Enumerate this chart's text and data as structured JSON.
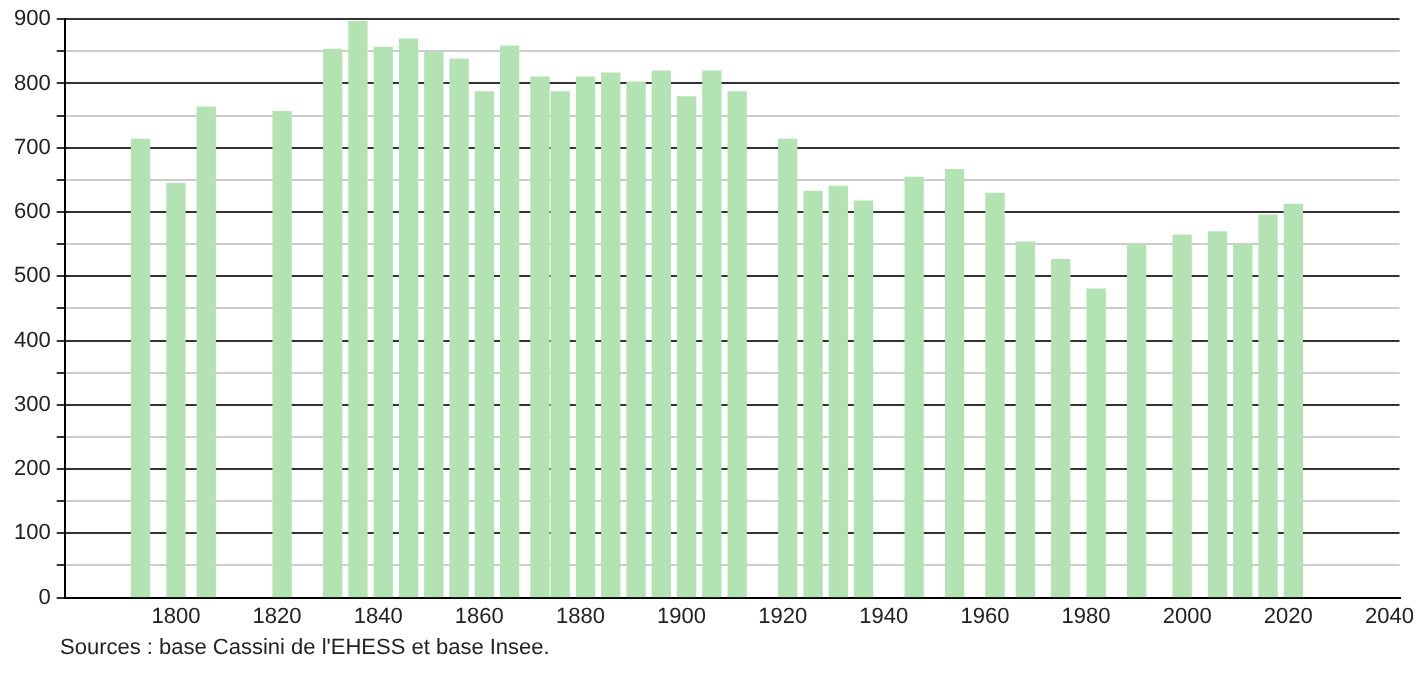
{
  "chart_data": {
    "type": "bar",
    "color": "#b3e3b3",
    "x": [
      1793,
      1800,
      1806,
      1821,
      1831,
      1836,
      1841,
      1846,
      1851,
      1856,
      1861,
      1866,
      1872,
      1876,
      1881,
      1886,
      1891,
      1896,
      1901,
      1906,
      1911,
      1921,
      1926,
      1931,
      1936,
      1946,
      1954,
      1962,
      1968,
      1975,
      1982,
      1990,
      1999,
      2006,
      2011,
      2016,
      2021
    ],
    "values": [
      713,
      644,
      763,
      756,
      853,
      896,
      856,
      869,
      848,
      838,
      787,
      858,
      810,
      787,
      810,
      816,
      802,
      819,
      779,
      819,
      787,
      713,
      632,
      640,
      617,
      654,
      666,
      629,
      553,
      526,
      480,
      549,
      564,
      569,
      549,
      595,
      612
    ],
    "xlim": [
      1778,
      2042
    ],
    "xticks": [
      1800,
      1820,
      1840,
      1860,
      1880,
      1900,
      1920,
      1940,
      1960,
      1980,
      2000,
      2020,
      2040
    ],
    "ylim": [
      0,
      900
    ],
    "yticks": [
      0,
      {
        "value": 50,
        "label": null
      },
      100,
      {
        "value": 150,
        "label": null
      },
      200,
      {
        "value": 250,
        "label": null
      },
      300,
      {
        "value": 350,
        "label": null
      },
      400,
      {
        "value": 450,
        "label": null
      },
      500,
      {
        "value": 550,
        "label": null
      },
      600,
      {
        "value": 650,
        "label": null
      },
      700,
      {
        "value": 750,
        "label": null
      },
      800,
      {
        "value": 850,
        "label": null
      },
      900
    ],
    "grid": "y",
    "annotations": [
      "Sources : base Cassini de l'EHESS et base Insee."
    ]
  }
}
